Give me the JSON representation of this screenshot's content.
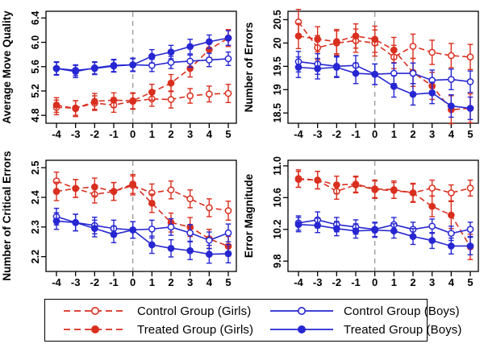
{
  "figure": {
    "background": "#ffffff"
  },
  "colors": {
    "red": "#d92f1f",
    "blue": "#2626d2",
    "axis": "#000000",
    "zero_line": "#999999",
    "legend_border": "#000000"
  },
  "series_styles": {
    "control_girls": {
      "color": "#d92f1f",
      "line": "dashed",
      "marker": "open"
    },
    "treated_girls": {
      "color": "#d92f1f",
      "line": "dashed",
      "marker": "filled"
    },
    "control_boys": {
      "color": "#2626d2",
      "line": "solid",
      "marker": "open"
    },
    "treated_boys": {
      "color": "#2626d2",
      "line": "solid",
      "marker": "filled"
    }
  },
  "legend": {
    "items": [
      {
        "key": "control_girls",
        "label": "Control Group (Girls)"
      },
      {
        "key": "control_boys",
        "label": "Control Group (Boys)"
      },
      {
        "key": "treated_girls",
        "label": "Treated Group (Girls)"
      },
      {
        "key": "treated_boys",
        "label": "Treated Group (Boys)"
      }
    ]
  },
  "chart_data": [
    {
      "type": "line",
      "ylabel": "Average Move Quality",
      "x": [
        -4,
        -3,
        -2,
        -1,
        0,
        1,
        2,
        3,
        4,
        5
      ],
      "xtick_labels": [
        "-4",
        "-3",
        "-2",
        "-1",
        "0",
        "1",
        "2",
        "3",
        "4",
        "5"
      ],
      "yticks": [
        4.8,
        5.2,
        5.6,
        6.0,
        6.4
      ],
      "ytick_labels": [
        "4.8",
        "5.2",
        "5.6",
        "6.0",
        "6.4"
      ],
      "ylim": [
        4.67,
        6.51
      ],
      "vline_x": 0,
      "grid": false,
      "series": [
        {
          "name": "control_girls",
          "values": [
            4.93,
            4.92,
            5.0,
            4.97,
            5.03,
            5.07,
            5.06,
            5.12,
            5.15,
            5.16
          ],
          "errors": [
            0.12,
            0.12,
            0.12,
            0.12,
            0.13,
            0.12,
            0.14,
            0.12,
            0.13,
            0.15
          ]
        },
        {
          "name": "treated_girls",
          "values": [
            4.97,
            4.91,
            5.03,
            5.05,
            5.04,
            5.18,
            5.33,
            5.57,
            5.88,
            6.07
          ],
          "errors": [
            0.12,
            0.13,
            0.13,
            0.12,
            0.13,
            0.13,
            0.14,
            0.14,
            0.13,
            0.14
          ]
        },
        {
          "name": "control_boys",
          "values": [
            5.57,
            5.54,
            5.57,
            5.61,
            5.63,
            5.62,
            5.67,
            5.69,
            5.71,
            5.73
          ],
          "errors": [
            0.1,
            0.09,
            0.1,
            0.1,
            0.1,
            0.1,
            0.1,
            0.1,
            0.11,
            0.11
          ]
        },
        {
          "name": "treated_boys",
          "values": [
            5.57,
            5.52,
            5.58,
            5.62,
            5.63,
            5.77,
            5.84,
            5.93,
            6.01,
            6.07
          ],
          "errors": [
            0.11,
            0.1,
            0.1,
            0.1,
            0.11,
            0.11,
            0.11,
            0.12,
            0.11,
            0.12
          ]
        }
      ]
    },
    {
      "type": "line",
      "ylabel": "Number of Errors",
      "x": [
        -4,
        -3,
        -2,
        -1,
        0,
        1,
        2,
        3,
        4,
        5
      ],
      "xtick_labels": [
        "-4",
        "-3",
        "-2",
        "-1",
        "0",
        "1",
        "2",
        "3",
        "4",
        "5"
      ],
      "yticks": [
        18.5,
        19,
        19.5,
        20,
        20.5
      ],
      "ytick_labels": [
        "18.5",
        "19",
        "19.5",
        "20",
        "20.5"
      ],
      "ylim": [
        18.28,
        20.68
      ],
      "vline_x": 0,
      "grid": false,
      "series": [
        {
          "name": "control_girls",
          "values": [
            20.45,
            19.9,
            20.0,
            20.05,
            20.0,
            19.7,
            19.93,
            19.8,
            19.73,
            19.7
          ],
          "errors": [
            0.27,
            0.26,
            0.26,
            0.25,
            0.28,
            0.25,
            0.26,
            0.26,
            0.26,
            0.27
          ]
        },
        {
          "name": "treated_girls",
          "values": [
            20.15,
            20.08,
            20.03,
            20.15,
            20.08,
            19.85,
            19.37,
            19.08,
            18.57,
            18.6
          ],
          "errors": [
            0.27,
            0.27,
            0.26,
            0.26,
            0.28,
            0.27,
            0.3,
            0.29,
            0.3,
            0.31
          ]
        },
        {
          "name": "control_boys",
          "values": [
            19.6,
            19.55,
            19.5,
            19.52,
            19.33,
            19.35,
            19.35,
            19.2,
            19.22,
            19.17
          ],
          "errors": [
            0.22,
            0.22,
            0.22,
            0.21,
            0.22,
            0.22,
            0.22,
            0.22,
            0.22,
            0.23
          ]
        },
        {
          "name": "treated_boys",
          "values": [
            19.48,
            19.45,
            19.48,
            19.35,
            19.33,
            19.07,
            18.9,
            18.93,
            18.65,
            18.6
          ],
          "errors": [
            0.22,
            0.22,
            0.22,
            0.22,
            0.22,
            0.23,
            0.23,
            0.23,
            0.24,
            0.24
          ]
        }
      ]
    },
    {
      "type": "line",
      "ylabel": "Number of Critical Errors",
      "x": [
        -4,
        -3,
        -2,
        -1,
        0,
        1,
        2,
        3,
        4,
        5
      ],
      "xtick_labels": [
        "-4",
        "-3",
        "-2",
        "-1",
        "0",
        "1",
        "2",
        "3",
        "4",
        "5"
      ],
      "yticks": [
        2.2,
        2.3,
        2.4,
        2.5
      ],
      "ytick_labels": [
        "2.2",
        "2.3",
        "2.4",
        "2.5"
      ],
      "ylim": [
        2.15,
        2.525
      ],
      "vline_x": 0,
      "grid": false,
      "series": [
        {
          "name": "control_girls",
          "values": [
            2.455,
            2.43,
            2.41,
            2.42,
            2.44,
            2.415,
            2.425,
            2.395,
            2.365,
            2.355
          ],
          "errors": [
            0.03,
            0.03,
            0.029,
            0.03,
            0.032,
            0.03,
            0.03,
            0.03,
            0.03,
            0.032
          ]
        },
        {
          "name": "treated_girls",
          "values": [
            2.42,
            2.43,
            2.435,
            2.42,
            2.445,
            2.38,
            2.315,
            2.3,
            2.26,
            2.235
          ],
          "errors": [
            0.031,
            0.03,
            0.03,
            0.03,
            0.032,
            0.031,
            0.032,
            0.032,
            0.032,
            0.033
          ]
        },
        {
          "name": "control_boys",
          "values": [
            2.335,
            2.315,
            2.305,
            2.295,
            2.29,
            2.293,
            2.3,
            2.28,
            2.255,
            2.28
          ],
          "errors": [
            0.028,
            0.028,
            0.028,
            0.028,
            0.028,
            0.03,
            0.028,
            0.028,
            0.028,
            0.03
          ]
        },
        {
          "name": "treated_boys",
          "values": [
            2.32,
            2.315,
            2.295,
            2.275,
            2.29,
            2.24,
            2.228,
            2.22,
            2.208,
            2.21
          ],
          "errors": [
            0.028,
            0.028,
            0.028,
            0.028,
            0.028,
            0.029,
            0.029,
            0.03,
            0.03,
            0.031
          ]
        }
      ]
    },
    {
      "type": "line",
      "ylabel": "Error Magnitude",
      "x": [
        -4,
        -3,
        -2,
        -1,
        0,
        1,
        2,
        3,
        4,
        5
      ],
      "xtick_labels": [
        "-4",
        "-3",
        "-2",
        "-1",
        "0",
        "1",
        "2",
        "3",
        "4",
        "5"
      ],
      "yticks": [
        9.8,
        10.2,
        10.6,
        11.0
      ],
      "ytick_labels": [
        "9.8",
        "10.2",
        "10.6",
        "11.0"
      ],
      "ylim": [
        9.67,
        11.07
      ],
      "vline_x": 0,
      "grid": false,
      "series": [
        {
          "name": "control_girls",
          "values": [
            10.83,
            10.82,
            10.68,
            10.76,
            10.7,
            10.69,
            10.66,
            10.72,
            10.66,
            10.72
          ],
          "errors": [
            0.1,
            0.11,
            0.1,
            0.1,
            0.11,
            0.1,
            0.11,
            0.1,
            0.1,
            0.1
          ]
        },
        {
          "name": "treated_girls",
          "values": [
            10.84,
            10.82,
            10.76,
            10.77,
            10.71,
            10.7,
            10.66,
            10.49,
            10.38,
            9.98
          ],
          "errors": [
            0.11,
            0.11,
            0.11,
            0.1,
            0.11,
            0.11,
            0.12,
            0.13,
            0.17,
            0.16
          ]
        },
        {
          "name": "control_boys",
          "values": [
            10.28,
            10.32,
            10.26,
            10.23,
            10.2,
            10.26,
            10.2,
            10.24,
            10.15,
            10.2
          ],
          "errors": [
            0.09,
            0.1,
            0.09,
            0.09,
            0.09,
            0.09,
            0.09,
            0.09,
            0.09,
            0.09
          ]
        },
        {
          "name": "treated_boys",
          "values": [
            10.26,
            10.25,
            10.21,
            10.18,
            10.19,
            10.18,
            10.11,
            10.06,
            9.99,
            9.99
          ],
          "errors": [
            0.09,
            0.09,
            0.09,
            0.09,
            0.09,
            0.09,
            0.1,
            0.1,
            0.1,
            0.11
          ]
        }
      ]
    }
  ]
}
